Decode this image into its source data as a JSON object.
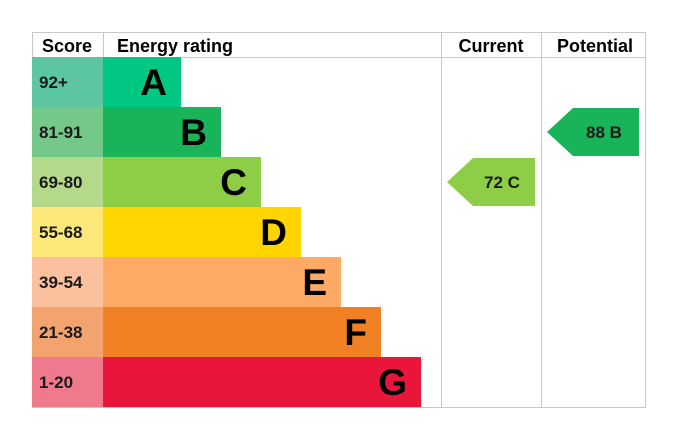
{
  "chart_data": {
    "type": "table",
    "headers": {
      "score": "Score",
      "energy_rating": "Energy rating",
      "current": "Current",
      "potential": "Potential"
    },
    "bands": [
      {
        "score": "92+",
        "letter": "A",
        "score_color": "#5cc6a3",
        "bar_color": "#00c781"
      },
      {
        "score": "81-91",
        "letter": "B",
        "score_color": "#74c98a",
        "bar_color": "#19b459"
      },
      {
        "score": "69-80",
        "letter": "C",
        "score_color": "#b4d98a",
        "bar_color": "#8dce46"
      },
      {
        "score": "55-68",
        "letter": "D",
        "score_color": "#fde879",
        "bar_color": "#ffd500"
      },
      {
        "score": "39-54",
        "letter": "E",
        "score_color": "#fbc09d",
        "bar_color": "#fcaa65"
      },
      {
        "score": "21-38",
        "letter": "F",
        "score_color": "#f3a46e",
        "bar_color": "#ef8023"
      },
      {
        "score": "1-20",
        "letter": "G",
        "score_color": "#f07a8d",
        "bar_color": "#e9153b"
      }
    ],
    "current": {
      "value": 72,
      "letter": "C",
      "label": "72  C",
      "color": "#8dce46"
    },
    "potential": {
      "value": 88,
      "letter": "B",
      "label": "88  B",
      "color": "#19b459"
    },
    "border_color": "#c8c8c8"
  }
}
